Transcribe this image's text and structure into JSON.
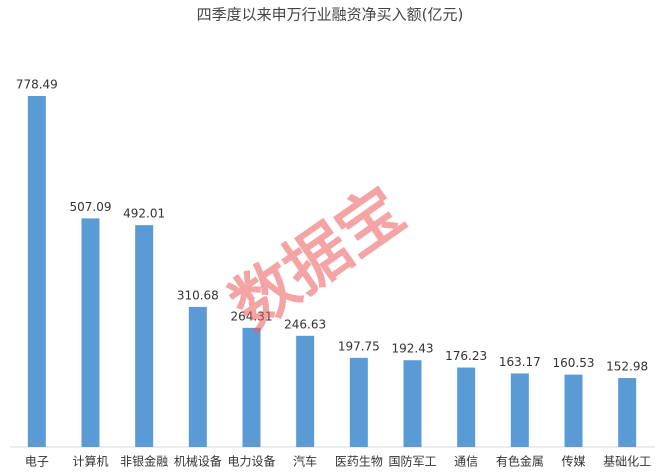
{
  "chart_data": {
    "type": "bar",
    "title": "四季度以来申万行业融资净买入额(亿元)",
    "categories": [
      "电子",
      "计算机",
      "非银金融",
      "机械设备",
      "电力设备",
      "汽车",
      "医药生物",
      "国防军工",
      "通信",
      "有色金属",
      "传媒",
      "基础化工"
    ],
    "values": [
      778.49,
      507.09,
      492.01,
      310.68,
      264.31,
      246.63,
      197.75,
      192.43,
      176.23,
      163.17,
      160.53,
      152.98
    ],
    "color": "#5b9bd5",
    "watermark": "数据宝"
  }
}
